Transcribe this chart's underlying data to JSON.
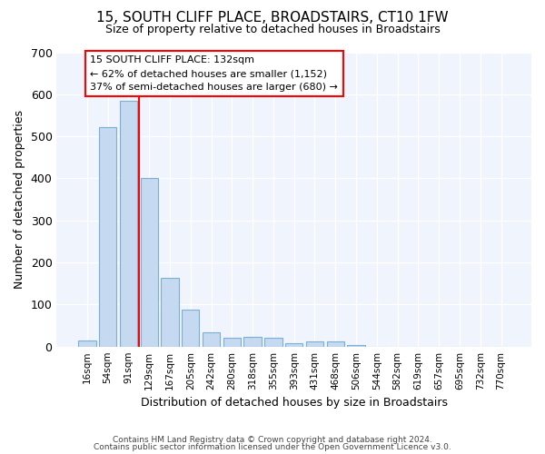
{
  "title": "15, SOUTH CLIFF PLACE, BROADSTAIRS, CT10 1FW",
  "subtitle": "Size of property relative to detached houses in Broadstairs",
  "xlabel": "Distribution of detached houses by size in Broadstairs",
  "ylabel": "Number of detached properties",
  "bar_labels": [
    "16sqm",
    "54sqm",
    "91sqm",
    "129sqm",
    "167sqm",
    "205sqm",
    "242sqm",
    "280sqm",
    "318sqm",
    "355sqm",
    "393sqm",
    "431sqm",
    "468sqm",
    "506sqm",
    "544sqm",
    "582sqm",
    "619sqm",
    "657sqm",
    "695sqm",
    "732sqm",
    "770sqm"
  ],
  "bar_heights": [
    15,
    522,
    585,
    400,
    163,
    88,
    33,
    20,
    22,
    20,
    8,
    12,
    12,
    3,
    0,
    0,
    0,
    0,
    0,
    0,
    0
  ],
  "bar_color": "#c5d9f0",
  "bar_edge_color": "#7bafd4",
  "red_line_x": 2.5,
  "annotation_label": "15 SOUTH CLIFF PLACE: 132sqm",
  "annotation_line1": "← 62% of detached houses are smaller (1,152)",
  "annotation_line2": "37% of semi-detached houses are larger (680) →",
  "ylim": [
    0,
    700
  ],
  "yticks": [
    0,
    100,
    200,
    300,
    400,
    500,
    600,
    700
  ],
  "footer1": "Contains HM Land Registry data © Crown copyright and database right 2024.",
  "footer2": "Contains public sector information licensed under the Open Government Licence v3.0.",
  "bg_color": "#ffffff",
  "plot_bg_color": "#f0f4fc",
  "grid_color": "#ffffff"
}
